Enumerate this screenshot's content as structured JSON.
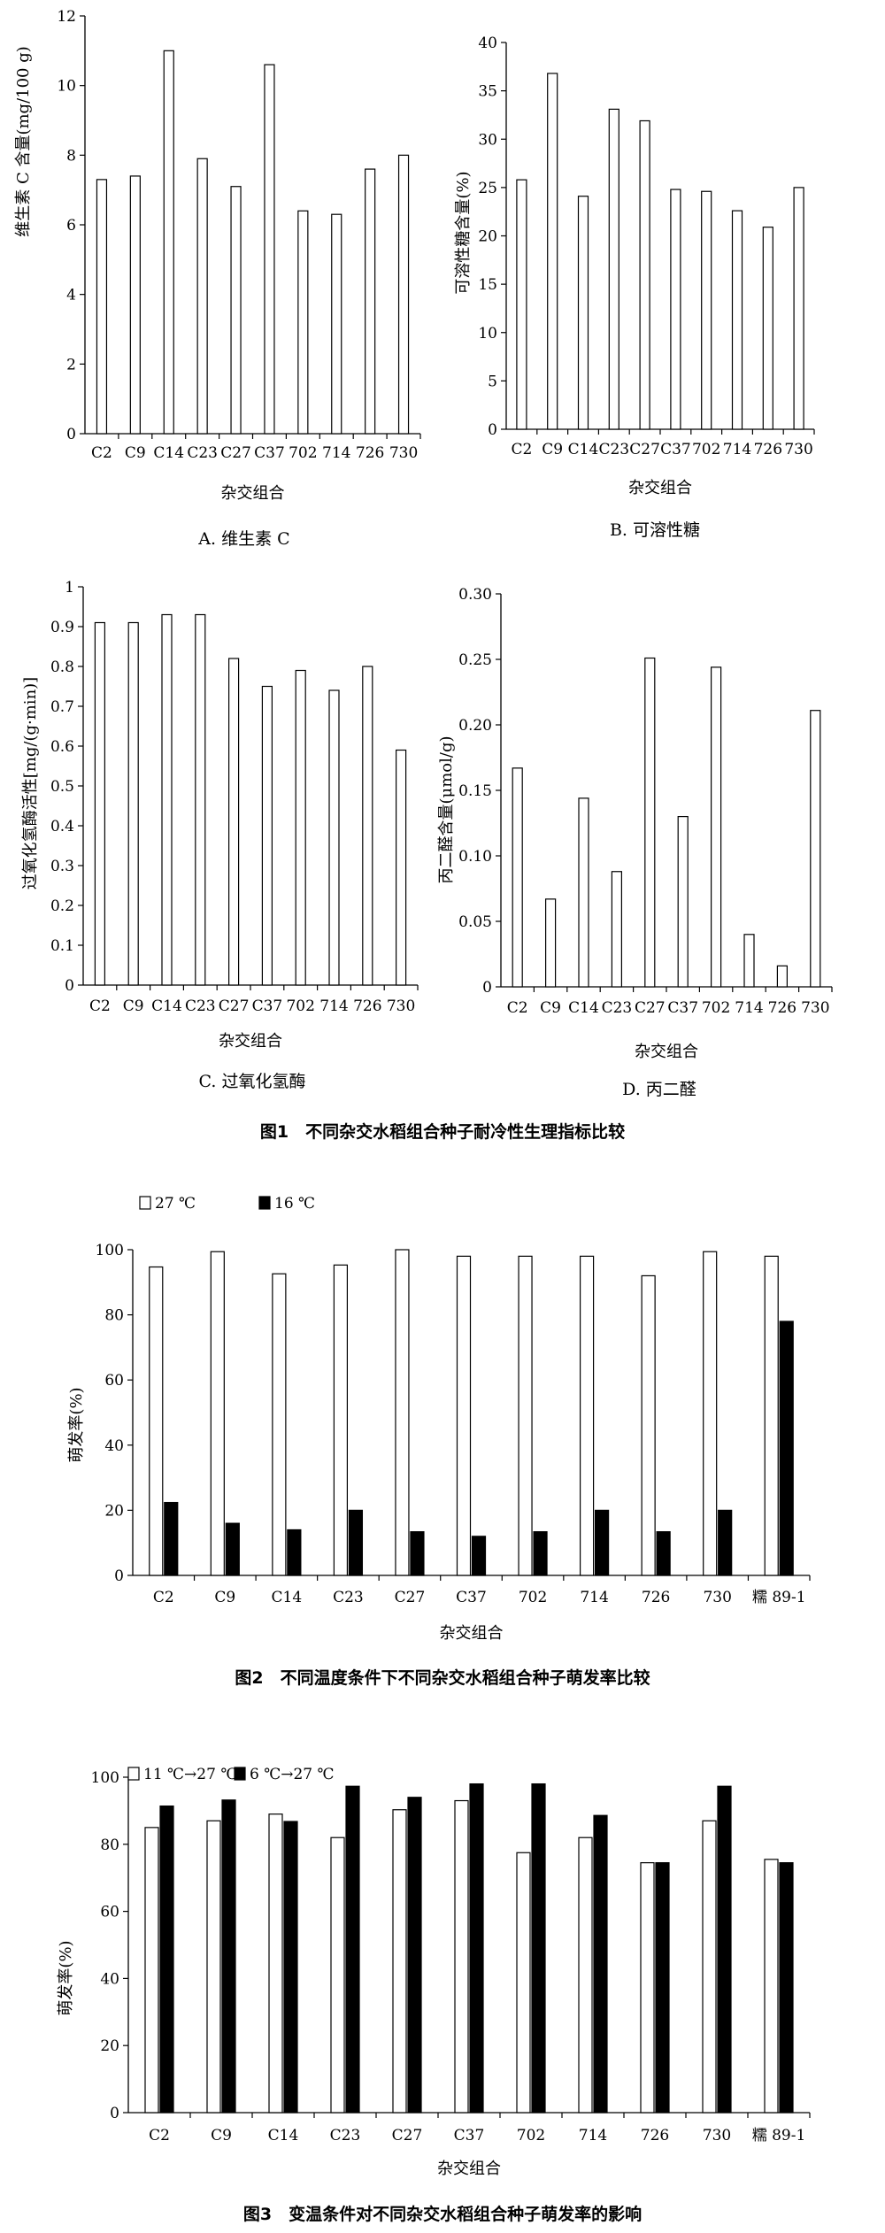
{
  "figure1_caption": "图1　不同杂交水稻组合种子耐冷性生理指标比较",
  "figure2_caption": "图2　不同温度条件下不同杂交水稻组合种子萌发率比较",
  "figure3_caption": "图3　变温条件对不同杂交水稻组合种子萌发率的影响",
  "chart_data": [
    {
      "id": "A",
      "type": "bar",
      "subtitle": "A. 维生素 C",
      "xlabel": "杂交组合",
      "ylabel": "维生素 C 含量(mg/100 g)",
      "ylim": [
        0,
        12
      ],
      "yticks": [
        0,
        2,
        4,
        6,
        8,
        10,
        12
      ],
      "categories": [
        "C2",
        "C9",
        "C14",
        "C23",
        "C27",
        "C37",
        "702",
        "714",
        "726",
        "730"
      ],
      "values": [
        7.3,
        7.4,
        11.0,
        7.9,
        7.1,
        10.6,
        6.4,
        6.3,
        7.6,
        8.0
      ]
    },
    {
      "id": "B",
      "type": "bar",
      "subtitle": "B. 可溶性糖",
      "xlabel": "杂交组合",
      "ylabel": "可溶性糖含量(%)",
      "ylim": [
        0,
        40
      ],
      "yticks": [
        0,
        5,
        10,
        15,
        20,
        25,
        30,
        35,
        40
      ],
      "categories": [
        "C2",
        "C9",
        "C14",
        "C23",
        "C27",
        "C37",
        "702",
        "714",
        "726",
        "730"
      ],
      "values": [
        25.8,
        36.8,
        24.1,
        33.1,
        31.9,
        24.8,
        24.6,
        22.6,
        20.9,
        25.0
      ]
    },
    {
      "id": "C",
      "type": "bar",
      "subtitle": "C. 过氧化氢酶",
      "xlabel": "杂交组合",
      "ylabel": "过氧化氢酶活性[mg/(g·min)]",
      "ylim": [
        0,
        1.0
      ],
      "yticks": [
        0,
        0.1,
        0.2,
        0.3,
        0.4,
        0.5,
        0.6,
        0.7,
        0.8,
        0.9,
        1.0
      ],
      "categories": [
        "C2",
        "C9",
        "C14",
        "C23",
        "C27",
        "C37",
        "702",
        "714",
        "726",
        "730"
      ],
      "values": [
        0.91,
        0.91,
        0.93,
        0.93,
        0.82,
        0.75,
        0.79,
        0.74,
        0.8,
        0.59
      ]
    },
    {
      "id": "D",
      "type": "bar",
      "subtitle": "D. 丙二醛",
      "xlabel": "杂交组合",
      "ylabel": "丙二醛含量(μmol/g)",
      "ylim": [
        0,
        0.3
      ],
      "yticks": [
        0,
        0.05,
        0.1,
        0.15,
        0.2,
        0.25,
        0.3
      ],
      "ytick_labels": [
        "0",
        "0.05",
        "0.10",
        "0.15",
        "0.20",
        "0.25",
        "0.30"
      ],
      "categories": [
        "C2",
        "C9",
        "C14",
        "C23",
        "C27",
        "C37",
        "702",
        "714",
        "726",
        "730"
      ],
      "values": [
        0.167,
        0.067,
        0.144,
        0.088,
        0.251,
        0.13,
        0.244,
        0.04,
        0.016,
        0.211
      ]
    },
    {
      "id": "F2",
      "type": "bar",
      "xlabel": "杂交组合",
      "ylabel": "萌发率(%)",
      "ylim": [
        0,
        100
      ],
      "yticks": [
        0,
        20,
        40,
        60,
        80,
        100
      ],
      "categories": [
        "C2",
        "C9",
        "C14",
        "C23",
        "C27",
        "C37",
        "702",
        "714",
        "726",
        "730",
        "糯 89-1"
      ],
      "legend_position": "top-left",
      "series": [
        {
          "name": "27 ℃",
          "color": "#ffffff",
          "values": [
            94.7,
            99.4,
            92.6,
            95.3,
            100,
            98.0,
            98.0,
            98.0,
            92.0,
            99.4,
            98.0
          ]
        },
        {
          "name": "16 ℃",
          "color": "#000000",
          "values": [
            22.4,
            16.0,
            14.0,
            20.0,
            13.4,
            12.0,
            13.4,
            20.0,
            13.4,
            20.0,
            78.0
          ]
        }
      ]
    },
    {
      "id": "F3",
      "type": "bar",
      "xlabel": "杂交组合",
      "ylabel": "萌发率(%)",
      "ylim": [
        0,
        100
      ],
      "yticks": [
        0,
        20,
        40,
        60,
        80,
        100
      ],
      "categories": [
        "C2",
        "C9",
        "C14",
        "C23",
        "C27",
        "C37",
        "702",
        "714",
        "726",
        "730",
        "糯 89-1"
      ],
      "legend_position": "top-left",
      "series": [
        {
          "name": "11 ℃→27 ℃",
          "color": "#ffffff",
          "values": [
            85.0,
            87.0,
            89.0,
            82.0,
            90.3,
            93.0,
            77.5,
            82.0,
            74.5,
            87.0,
            75.5
          ]
        },
        {
          "name": "6 ℃→27 ℃",
          "color": "#000000",
          "values": [
            91.4,
            93.2,
            86.8,
            97.3,
            94.0,
            98.0,
            98.0,
            88.6,
            74.5,
            97.3,
            74.5
          ]
        }
      ]
    }
  ]
}
